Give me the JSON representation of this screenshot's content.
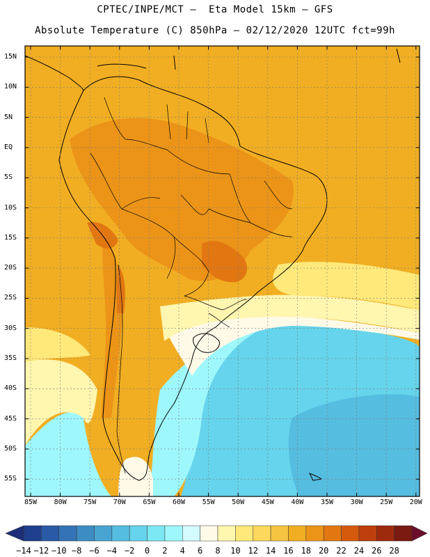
{
  "header": {
    "title_line1": "CPTEC/INPE/MCT –  Eta Model 15km – GFS",
    "title_line2": "Absolute Temperature (C) 850hPa – 02/12/2020 12UTC fct=99h"
  },
  "axes": {
    "lat_labels": [
      "15N",
      "10N",
      "5N",
      "EQ",
      "5S",
      "10S",
      "15S",
      "20S",
      "25S",
      "30S",
      "35S",
      "40S",
      "45S",
      "50S",
      "55S"
    ],
    "lon_labels": [
      "85W",
      "80W",
      "75W",
      "70W",
      "65W",
      "60W",
      "55W",
      "50W",
      "45W",
      "40W",
      "35W",
      "30W",
      "25W",
      "20W"
    ]
  },
  "colorbar": {
    "labels": [
      "-14",
      "-12",
      "-10",
      "-8",
      "-6",
      "-4",
      "-2",
      "0",
      "2",
      "4",
      "6",
      "8",
      "10",
      "12",
      "14",
      "16",
      "18",
      "20",
      "22",
      "24",
      "26",
      "28"
    ],
    "colors": [
      "#1f3f8f",
      "#2a5aa5",
      "#3473b5",
      "#3d8cc4",
      "#48a5d2",
      "#55bde0",
      "#66d4ec",
      "#7ce8f4",
      "#9ef7fb",
      "#d4fbff",
      "#fffae8",
      "#fff6b0",
      "#ffe97a",
      "#fcd85c",
      "#f5c440",
      "#f1ae22",
      "#eb9418",
      "#e27712",
      "#d45a0e",
      "#bd3f0d",
      "#9e2a0d",
      "#7a1a10"
    ],
    "under_color": "#1d2f78",
    "over_color": "#6b0e2b"
  },
  "map": {
    "background_color": "#f1ae22",
    "regions": [
      {
        "name": "cold-ocean-south",
        "color": "#66d4ec"
      },
      {
        "name": "very-cold-ocean-southeast",
        "color": "#55bde0"
      },
      {
        "name": "cool-ocean",
        "color": "#9ef7fb"
      },
      {
        "name": "mild-band",
        "color": "#fffae8"
      },
      {
        "name": "warm-band",
        "color": "#fff6b0"
      },
      {
        "name": "warmer-band",
        "color": "#ffe97a"
      },
      {
        "name": "hot-interior",
        "color": "#eb9418"
      },
      {
        "name": "very-hot-spots",
        "color": "#e27712"
      }
    ]
  }
}
